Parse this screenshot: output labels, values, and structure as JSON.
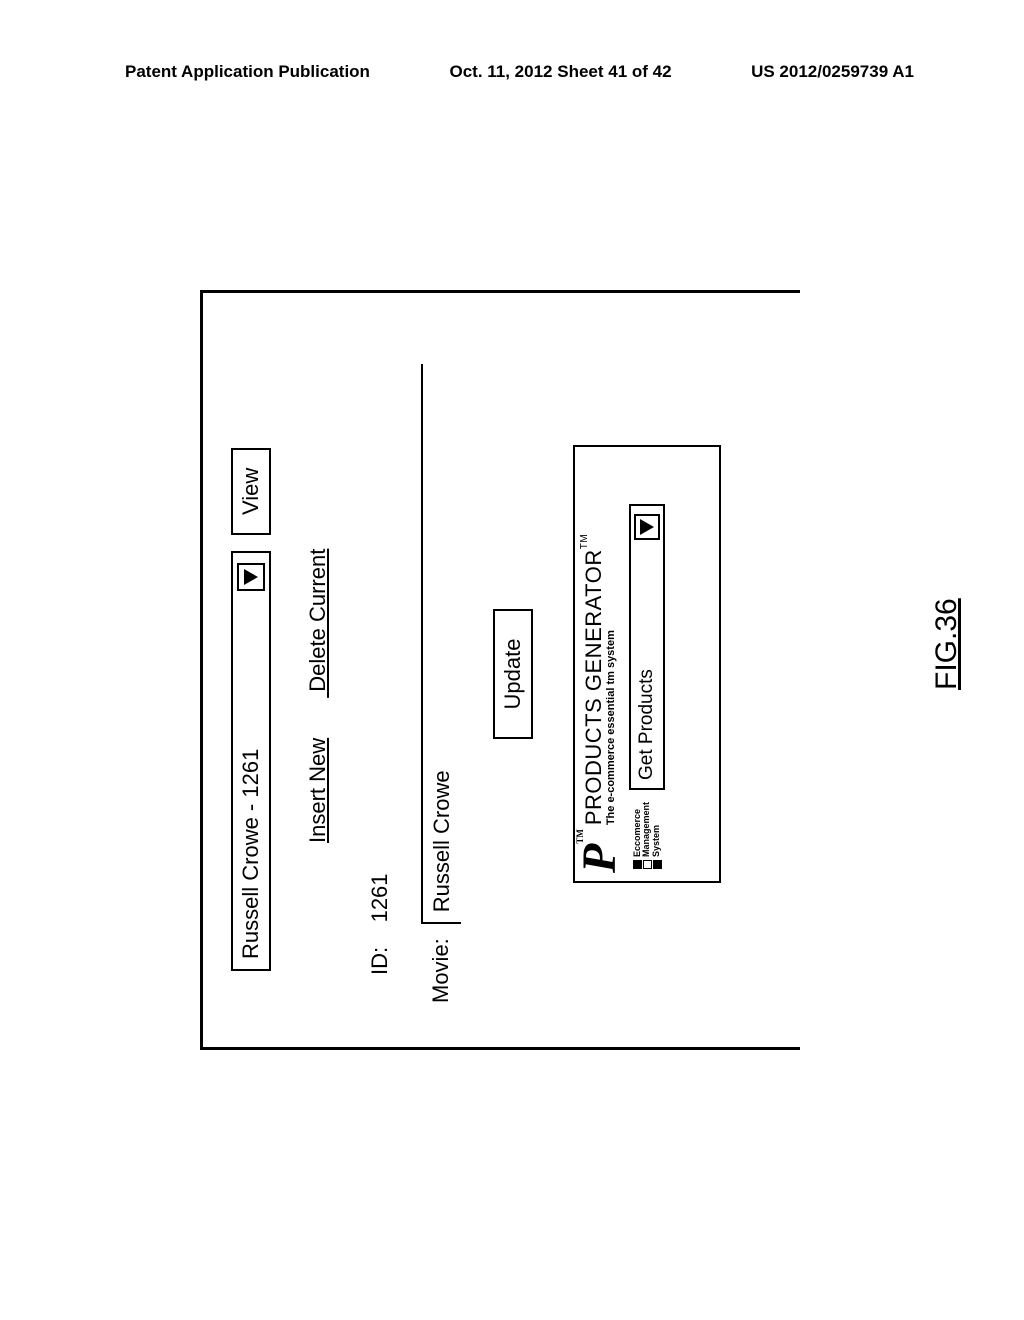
{
  "header": {
    "left": "Patent Application Publication",
    "center": "Oct. 11, 2012  Sheet 41 of 42",
    "right": "US 2012/0259739 A1"
  },
  "selector": {
    "value": "Russell Crowe - 1261",
    "view_label": "View"
  },
  "links": {
    "insert": "Insert New",
    "delete": "Delete Current"
  },
  "id": {
    "label": "ID:",
    "value": "1261"
  },
  "movie": {
    "label": "Movie:",
    "value": "Russell Crowe"
  },
  "update_label": "Update",
  "generator": {
    "title": "PRODUCTS GENERATOR",
    "tm": "TM",
    "subtitle": "The e-commerce essential tm system",
    "ems1": "Eccomerce",
    "ems2": "Management",
    "ems3": "System",
    "select_label": "Get Products"
  },
  "figure_label": "FIG.36",
  "colors": {
    "border": "#000000",
    "bg": "#ffffff"
  }
}
